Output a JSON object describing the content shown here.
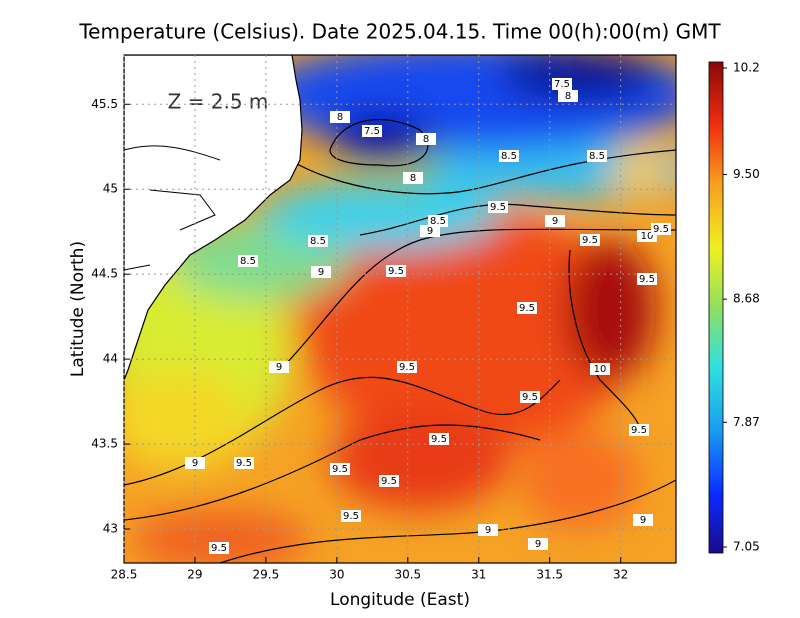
{
  "chart_data": {
    "type": "heatmap",
    "title": "Temperature (Celsius). Date 2025.04.15. Time 00(h):00(m) GMT",
    "annotation": "Z = 2.5 m",
    "xlabel": "Longitude (East)",
    "ylabel": "Latitude (North)",
    "xlim": [
      28.5,
      32.39
    ],
    "ylim": [
      42.8,
      45.79
    ],
    "xticks": [
      28.5,
      29,
      29.5,
      30,
      30.5,
      31,
      31.5,
      32
    ],
    "yticks": [
      43,
      43.5,
      44,
      44.5,
      45,
      45.5
    ],
    "grid": true,
    "colorbar": {
      "lim": [
        7.05,
        10.2
      ],
      "ticks": [
        7.05,
        7.87,
        8.68,
        {
          "value": 9.5,
          "label": "9.50"
        },
        10.2
      ]
    },
    "contour_labels": [
      7.5,
      8,
      8,
      7.5,
      8,
      8.5,
      8.5,
      8,
      9.5,
      8.5,
      9,
      9,
      9.5,
      10,
      9.5,
      8.5,
      8.5,
      9.5,
      9,
      9.5,
      9.5,
      9,
      9.5,
      10,
      9.5,
      9.5,
      9.5,
      9.5,
      9,
      9.5,
      9.5,
      9.5,
      9,
      9,
      9,
      9.5
    ]
  }
}
